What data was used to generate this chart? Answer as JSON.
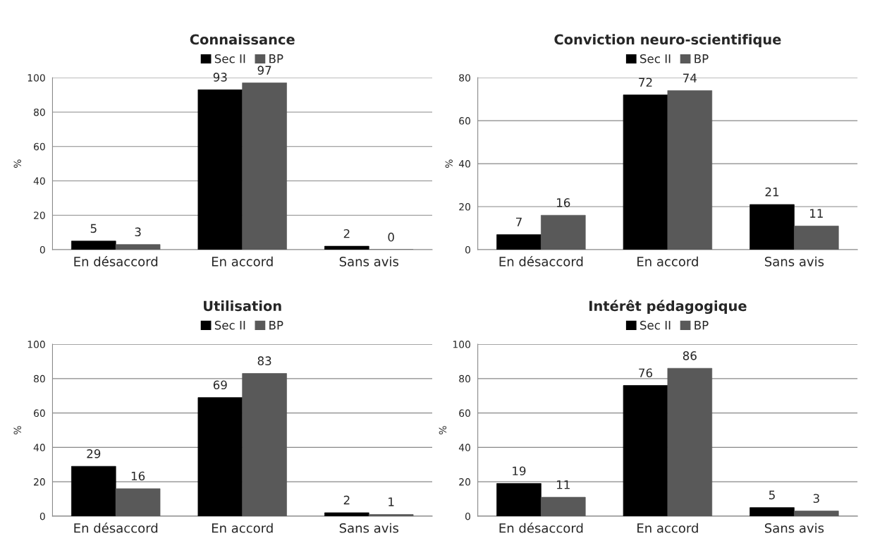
{
  "chart_data": [
    {
      "type": "bar",
      "title": "Connaissance",
      "ylabel": "%",
      "categories": [
        "En désaccord",
        "En accord",
        "Sans avis"
      ],
      "series": [
        {
          "name": "Sec II",
          "color": "#000000",
          "values": [
            5,
            93,
            2
          ]
        },
        {
          "name": "BP",
          "color": "#595959",
          "values": [
            3,
            97,
            0
          ]
        }
      ],
      "ylim": [
        0,
        100
      ],
      "yticks": [
        0,
        20,
        40,
        60,
        80,
        100
      ],
      "grid": "y",
      "legend": "top",
      "data_labels": true
    },
    {
      "type": "bar",
      "title": "Conviction neuro-scientifique",
      "ylabel": "%",
      "categories": [
        "En désaccord",
        "En accord",
        "Sans avis"
      ],
      "series": [
        {
          "name": "Sec II",
          "color": "#000000",
          "values": [
            7,
            72,
            21
          ]
        },
        {
          "name": "BP",
          "color": "#595959",
          "values": [
            16,
            74,
            11
          ]
        }
      ],
      "ylim": [
        0,
        80
      ],
      "yticks": [
        0,
        20,
        40,
        60,
        80
      ],
      "grid": "y",
      "legend": "top",
      "data_labels": true
    },
    {
      "type": "bar",
      "title": "Utilisation",
      "ylabel": "%",
      "categories": [
        "En désaccord",
        "En accord",
        "Sans avis"
      ],
      "series": [
        {
          "name": "Sec II",
          "color": "#000000",
          "values": [
            29,
            69,
            2
          ]
        },
        {
          "name": "BP",
          "color": "#595959",
          "values": [
            16,
            83,
            1
          ]
        }
      ],
      "ylim": [
        0,
        100
      ],
      "yticks": [
        0,
        20,
        40,
        60,
        80,
        100
      ],
      "grid": "y",
      "legend": "top",
      "data_labels": true
    },
    {
      "type": "bar",
      "title": "Intérêt pédagogique",
      "ylabel": "%",
      "categories": [
        "En désaccord",
        "En accord",
        "Sans avis"
      ],
      "series": [
        {
          "name": "Sec II",
          "color": "#000000",
          "values": [
            19,
            76,
            5
          ]
        },
        {
          "name": "BP",
          "color": "#595959",
          "values": [
            11,
            86,
            3
          ]
        }
      ],
      "ylim": [
        0,
        100
      ],
      "yticks": [
        0,
        20,
        40,
        60,
        80,
        100
      ],
      "grid": "y",
      "legend": "top",
      "data_labels": true
    }
  ]
}
